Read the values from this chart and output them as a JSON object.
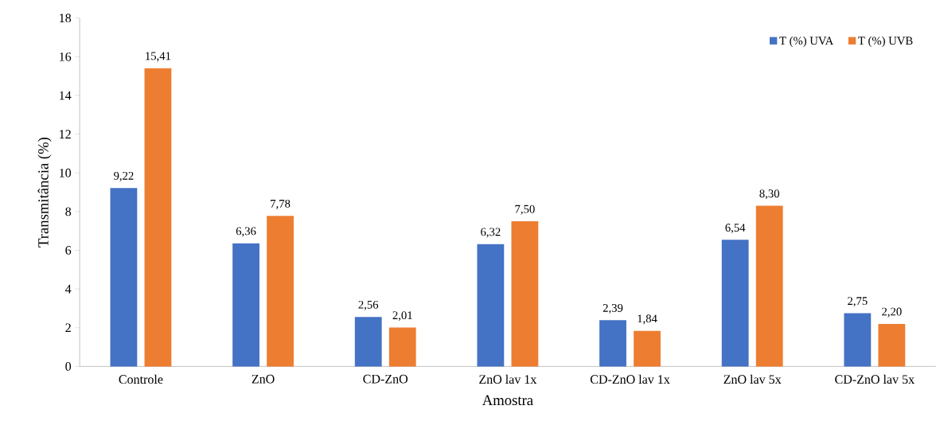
{
  "chart_data": {
    "type": "bar",
    "xlabel": "Amostra",
    "ylabel": "Transmitância  (%)",
    "categories": [
      "Controle",
      "ZnO",
      "CD-ZnO",
      "ZnO lav 1x",
      "CD-ZnO lav 1x",
      "ZnO lav 5x",
      "CD-ZnO lav 5x"
    ],
    "series": [
      {
        "name": "T (%) UVA",
        "color": "#4472c4",
        "values": [
          9.22,
          6.36,
          2.56,
          6.32,
          2.39,
          6.54,
          2.75
        ],
        "value_labels": [
          "9,22",
          "6,36",
          "2,56",
          "6,32",
          "2,39",
          "6,54",
          "2,75"
        ]
      },
      {
        "name": "T (%) UVB",
        "color": "#ed7d31",
        "values": [
          15.41,
          7.78,
          2.01,
          7.5,
          1.84,
          8.3,
          2.2
        ],
        "value_labels": [
          "15,41",
          "7,78",
          "2,01",
          "7,50",
          "1,84",
          "8,30",
          "2,20"
        ]
      }
    ],
    "ylim": [
      0,
      18
    ],
    "yticks": [
      0,
      2,
      4,
      6,
      8,
      10,
      12,
      14,
      16,
      18
    ],
    "grid": false,
    "legend": "top right"
  }
}
